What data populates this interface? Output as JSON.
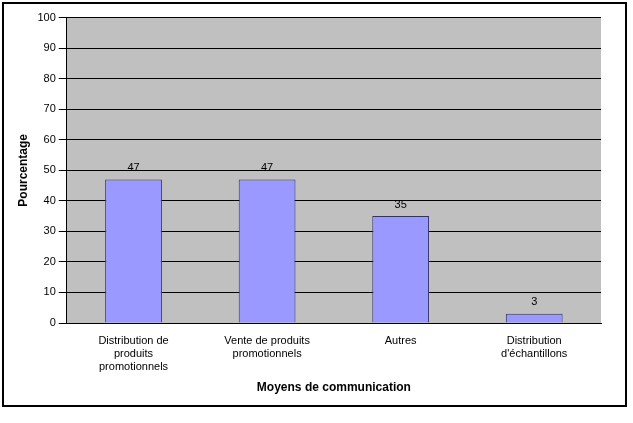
{
  "chart_data": {
    "type": "bar",
    "categories": [
      "Distribution de produits promotionnels",
      "Vente de produits promotionnels",
      "Autres",
      "Distribution d'échantillons"
    ],
    "values": [
      47,
      47,
      35,
      3
    ],
    "color": "#9999ff",
    "x_label": "Moyens de communication",
    "y_label": "Pourcentage",
    "ylim": [
      0,
      100
    ],
    "yticks": [
      0,
      10,
      20,
      30,
      40,
      50,
      60,
      70,
      80,
      90,
      100
    ],
    "grid": true,
    "data_labels": true
  }
}
